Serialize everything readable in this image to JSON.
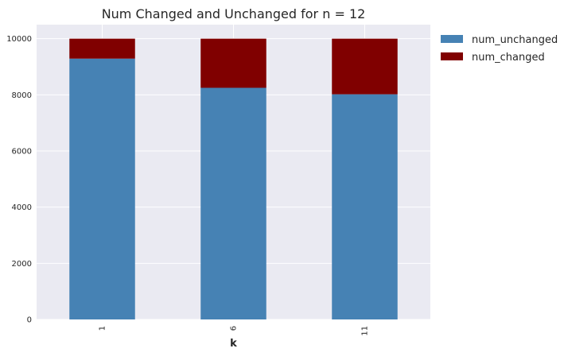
{
  "chart_data": {
    "type": "bar",
    "stacked": true,
    "title": "Num Changed and Unchanged for n = 12",
    "xlabel": "k",
    "ylabel": "",
    "categories": [
      "1",
      "6",
      "11"
    ],
    "series": [
      {
        "name": "num_unchanged",
        "color": "#4682b4",
        "values": [
          9290,
          8250,
          8020
        ]
      },
      {
        "name": "num_changed",
        "color": "#800000",
        "values": [
          710,
          1750,
          1980
        ]
      }
    ],
    "ylim": [
      0,
      10500
    ],
    "yticks": [
      0,
      2000,
      4000,
      6000,
      8000,
      10000
    ],
    "grid": true,
    "legend_position": "outside-top-right"
  }
}
